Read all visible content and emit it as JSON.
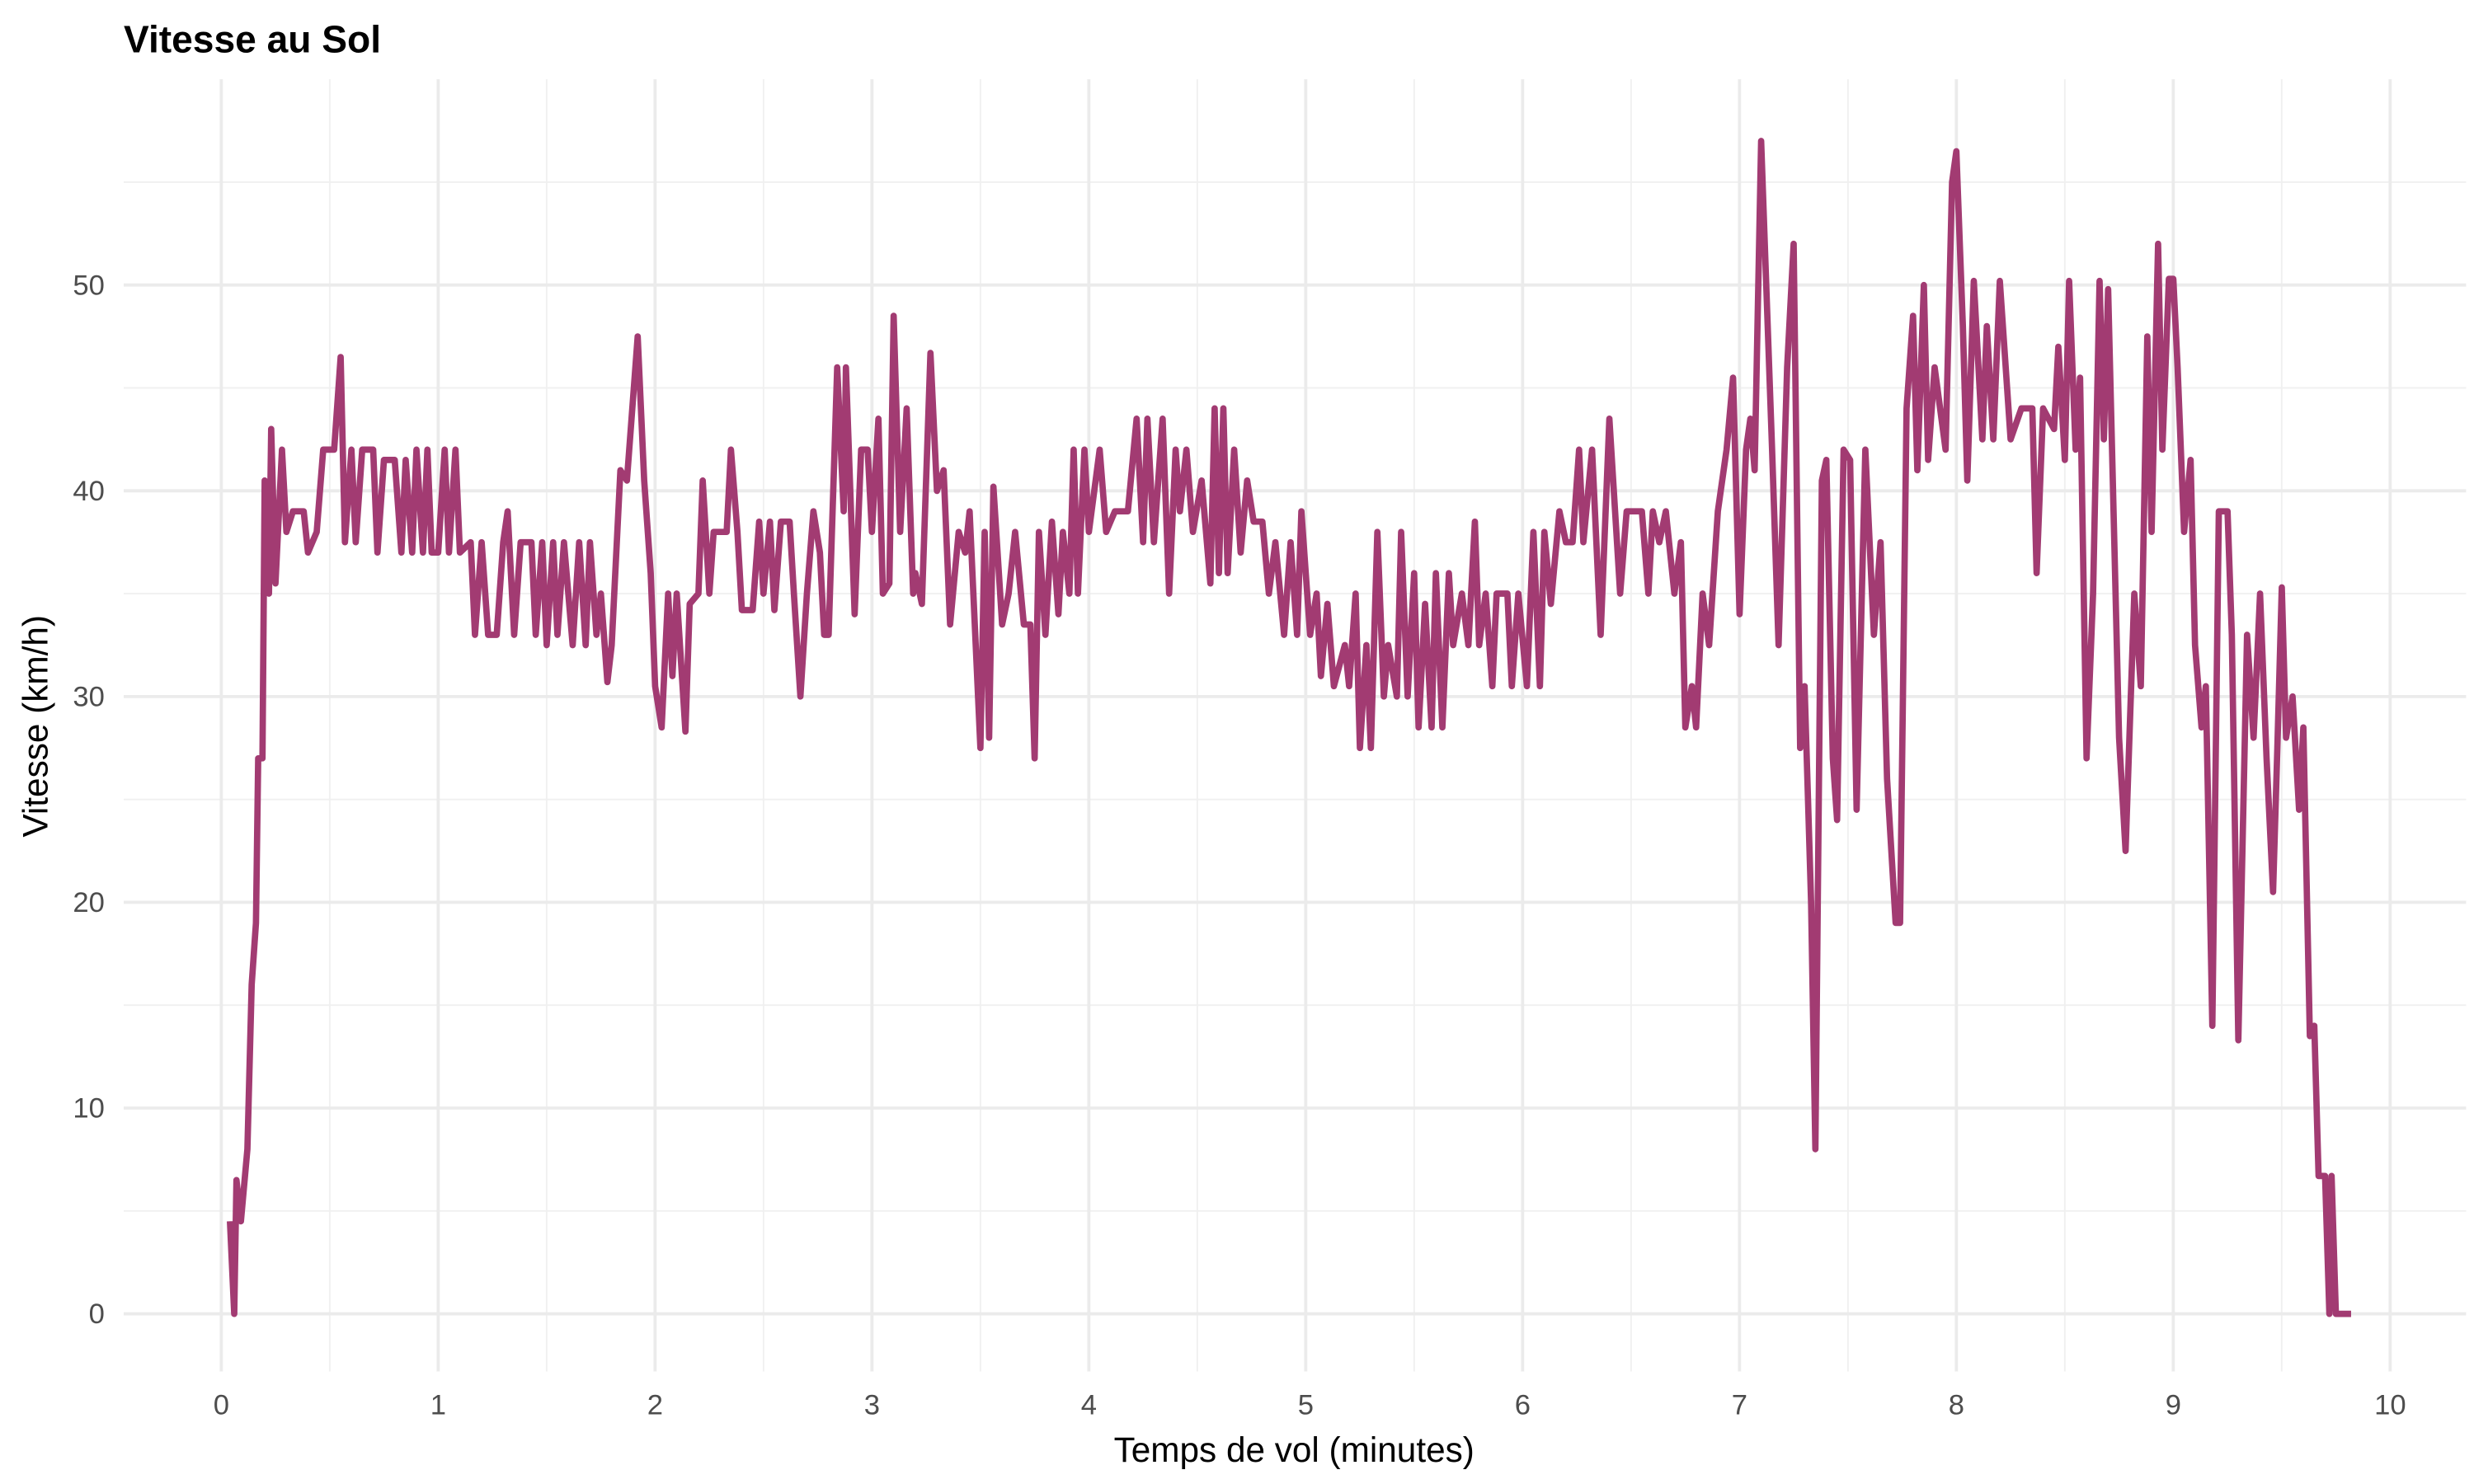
{
  "chart_data": {
    "type": "line",
    "title": "Vitesse au Sol",
    "xlabel": "Temps de vol (minutes)",
    "ylabel": "Vitesse (km/h)",
    "xlim": [
      -0.45,
      10.35
    ],
    "ylim": [
      -2.8,
      60
    ],
    "x_ticks": [
      0,
      1,
      2,
      3,
      4,
      5,
      6,
      7,
      8,
      9,
      10
    ],
    "y_ticks": [
      0,
      10,
      20,
      30,
      40,
      50
    ],
    "grid": true,
    "legend": "none",
    "line_color": "#A23B72",
    "points": [
      [
        0.04,
        4.5
      ],
      [
        0.06,
        0
      ],
      [
        0.07,
        6.5
      ],
      [
        0.09,
        4.5
      ],
      [
        0.12,
        8
      ],
      [
        0.14,
        16
      ],
      [
        0.16,
        19
      ],
      [
        0.17,
        27
      ],
      [
        0.19,
        27
      ],
      [
        0.2,
        40.5
      ],
      [
        0.22,
        35
      ],
      [
        0.23,
        43
      ],
      [
        0.25,
        35.5
      ],
      [
        0.28,
        42
      ],
      [
        0.3,
        38
      ],
      [
        0.33,
        39
      ],
      [
        0.38,
        39
      ],
      [
        0.4,
        37
      ],
      [
        0.44,
        38
      ],
      [
        0.47,
        42
      ],
      [
        0.52,
        42
      ],
      [
        0.55,
        46.5
      ],
      [
        0.57,
        37.5
      ],
      [
        0.6,
        42
      ],
      [
        0.62,
        37.5
      ],
      [
        0.65,
        42
      ],
      [
        0.7,
        42
      ],
      [
        0.72,
        37
      ],
      [
        0.75,
        41.5
      ],
      [
        0.8,
        41.5
      ],
      [
        0.83,
        37
      ],
      [
        0.85,
        41.5
      ],
      [
        0.88,
        37
      ],
      [
        0.9,
        42
      ],
      [
        0.93,
        37
      ],
      [
        0.95,
        42
      ],
      [
        0.97,
        37
      ],
      [
        1.0,
        37
      ],
      [
        1.03,
        42
      ],
      [
        1.05,
        37
      ],
      [
        1.08,
        42
      ],
      [
        1.1,
        37
      ],
      [
        1.15,
        37.5
      ],
      [
        1.17,
        33
      ],
      [
        1.2,
        37.5
      ],
      [
        1.23,
        33
      ],
      [
        1.27,
        33
      ],
      [
        1.3,
        37.5
      ],
      [
        1.32,
        39
      ],
      [
        1.35,
        33
      ],
      [
        1.38,
        37.5
      ],
      [
        1.43,
        37.5
      ],
      [
        1.45,
        33
      ],
      [
        1.48,
        37.5
      ],
      [
        1.5,
        32.5
      ],
      [
        1.53,
        37.5
      ],
      [
        1.55,
        33
      ],
      [
        1.58,
        37.5
      ],
      [
        1.62,
        32.5
      ],
      [
        1.65,
        37.5
      ],
      [
        1.68,
        32.5
      ],
      [
        1.7,
        37.5
      ],
      [
        1.73,
        33
      ],
      [
        1.75,
        35
      ],
      [
        1.78,
        30.7
      ],
      [
        1.8,
        32.5
      ],
      [
        1.84,
        41
      ],
      [
        1.87,
        40.5
      ],
      [
        1.92,
        47.5
      ],
      [
        1.95,
        40.5
      ],
      [
        1.98,
        36
      ],
      [
        2.0,
        30.5
      ],
      [
        2.03,
        28.5
      ],
      [
        2.06,
        35
      ],
      [
        2.08,
        31
      ],
      [
        2.1,
        35
      ],
      [
        2.14,
        28.3
      ],
      [
        2.16,
        34.5
      ],
      [
        2.2,
        35
      ],
      [
        2.22,
        40.5
      ],
      [
        2.25,
        35
      ],
      [
        2.27,
        38
      ],
      [
        2.33,
        38
      ],
      [
        2.35,
        42
      ],
      [
        2.38,
        38
      ],
      [
        2.4,
        34.2
      ],
      [
        2.45,
        34.2
      ],
      [
        2.48,
        38.5
      ],
      [
        2.5,
        35
      ],
      [
        2.53,
        38.5
      ],
      [
        2.55,
        34.2
      ],
      [
        2.58,
        38.5
      ],
      [
        2.62,
        38.5
      ],
      [
        2.64,
        35
      ],
      [
        2.67,
        30
      ],
      [
        2.7,
        35
      ],
      [
        2.73,
        39
      ],
      [
        2.76,
        37
      ],
      [
        2.78,
        33
      ],
      [
        2.8,
        33
      ],
      [
        2.84,
        46
      ],
      [
        2.87,
        39
      ],
      [
        2.88,
        46
      ],
      [
        2.92,
        34
      ],
      [
        2.95,
        42
      ],
      [
        2.98,
        42
      ],
      [
        3.0,
        38
      ],
      [
        3.03,
        43.5
      ],
      [
        3.05,
        35
      ],
      [
        3.08,
        35.5
      ],
      [
        3.1,
        48.5
      ],
      [
        3.13,
        38
      ],
      [
        3.16,
        44
      ],
      [
        3.19,
        35
      ],
      [
        3.2,
        36
      ],
      [
        3.23,
        34.5
      ],
      [
        3.27,
        46.7
      ],
      [
        3.3,
        40
      ],
      [
        3.33,
        41
      ],
      [
        3.36,
        33.5
      ],
      [
        3.4,
        38
      ],
      [
        3.43,
        37
      ],
      [
        3.45,
        39
      ],
      [
        3.5,
        27.5
      ],
      [
        3.52,
        38
      ],
      [
        3.54,
        28
      ],
      [
        3.56,
        40.2
      ],
      [
        3.6,
        33.5
      ],
      [
        3.63,
        35
      ],
      [
        3.66,
        38
      ],
      [
        3.7,
        33.5
      ],
      [
        3.73,
        33.5
      ],
      [
        3.75,
        27
      ],
      [
        3.77,
        38
      ],
      [
        3.8,
        33
      ],
      [
        3.83,
        38.5
      ],
      [
        3.86,
        34
      ],
      [
        3.88,
        38
      ],
      [
        3.91,
        35
      ],
      [
        3.93,
        42
      ],
      [
        3.95,
        35
      ],
      [
        3.98,
        42
      ],
      [
        4.0,
        38
      ],
      [
        4.05,
        42
      ],
      [
        4.08,
        38
      ],
      [
        4.12,
        39
      ],
      [
        4.18,
        39
      ],
      [
        4.22,
        43.5
      ],
      [
        4.25,
        37.5
      ],
      [
        4.27,
        43.5
      ],
      [
        4.3,
        37.5
      ],
      [
        4.34,
        43.5
      ],
      [
        4.37,
        35
      ],
      [
        4.4,
        42
      ],
      [
        4.42,
        39
      ],
      [
        4.45,
        42
      ],
      [
        4.48,
        38
      ],
      [
        4.52,
        40.5
      ],
      [
        4.56,
        35.5
      ],
      [
        4.58,
        44
      ],
      [
        4.6,
        36
      ],
      [
        4.62,
        44
      ],
      [
        4.64,
        36
      ],
      [
        4.67,
        42
      ],
      [
        4.7,
        37
      ],
      [
        4.73,
        40.5
      ],
      [
        4.76,
        38.5
      ],
      [
        4.8,
        38.5
      ],
      [
        4.83,
        35
      ],
      [
        4.86,
        37.5
      ],
      [
        4.9,
        33
      ],
      [
        4.93,
        37.5
      ],
      [
        4.96,
        33
      ],
      [
        4.98,
        39
      ],
      [
        5.02,
        33
      ],
      [
        5.05,
        35
      ],
      [
        5.07,
        31
      ],
      [
        5.1,
        34.5
      ],
      [
        5.13,
        30.5
      ],
      [
        5.18,
        32.5
      ],
      [
        5.2,
        30.5
      ],
      [
        5.23,
        35
      ],
      [
        5.25,
        27.5
      ],
      [
        5.28,
        32.5
      ],
      [
        5.3,
        27.5
      ],
      [
        5.33,
        38
      ],
      [
        5.36,
        30
      ],
      [
        5.38,
        32.5
      ],
      [
        5.42,
        30
      ],
      [
        5.44,
        38
      ],
      [
        5.47,
        30
      ],
      [
        5.5,
        36
      ],
      [
        5.52,
        28.5
      ],
      [
        5.55,
        34.5
      ],
      [
        5.58,
        28.5
      ],
      [
        5.6,
        36
      ],
      [
        5.63,
        28.5
      ],
      [
        5.66,
        36
      ],
      [
        5.68,
        32.5
      ],
      [
        5.72,
        35
      ],
      [
        5.75,
        32.5
      ],
      [
        5.78,
        38.5
      ],
      [
        5.8,
        32.5
      ],
      [
        5.83,
        35
      ],
      [
        5.86,
        30.5
      ],
      [
        5.88,
        35
      ],
      [
        5.93,
        35
      ],
      [
        5.95,
        30.5
      ],
      [
        5.98,
        35
      ],
      [
        6.02,
        30.5
      ],
      [
        6.05,
        38
      ],
      [
        6.08,
        30.5
      ],
      [
        6.1,
        38
      ],
      [
        6.13,
        34.5
      ],
      [
        6.17,
        39
      ],
      [
        6.2,
        37.5
      ],
      [
        6.23,
        37.5
      ],
      [
        6.26,
        42
      ],
      [
        6.28,
        37.5
      ],
      [
        6.32,
        42
      ],
      [
        6.36,
        33
      ],
      [
        6.4,
        43.5
      ],
      [
        6.45,
        35
      ],
      [
        6.48,
        39
      ],
      [
        6.55,
        39
      ],
      [
        6.58,
        35
      ],
      [
        6.6,
        39
      ],
      [
        6.63,
        37.5
      ],
      [
        6.66,
        39
      ],
      [
        6.7,
        35
      ],
      [
        6.73,
        37.5
      ],
      [
        6.75,
        28.5
      ],
      [
        6.78,
        30.5
      ],
      [
        6.8,
        28.5
      ],
      [
        6.83,
        35
      ],
      [
        6.86,
        32.5
      ],
      [
        6.9,
        39
      ],
      [
        6.94,
        42
      ],
      [
        6.97,
        45.5
      ],
      [
        7.0,
        34
      ],
      [
        7.03,
        42
      ],
      [
        7.05,
        43.5
      ],
      [
        7.07,
        41
      ],
      [
        7.1,
        57
      ],
      [
        7.15,
        42
      ],
      [
        7.18,
        32.5
      ],
      [
        7.22,
        46
      ],
      [
        7.25,
        52
      ],
      [
        7.28,
        27.5
      ],
      [
        7.3,
        30.5
      ],
      [
        7.33,
        20
      ],
      [
        7.35,
        8
      ],
      [
        7.38,
        40.5
      ],
      [
        7.4,
        41.5
      ],
      [
        7.43,
        27
      ],
      [
        7.45,
        24
      ],
      [
        7.48,
        42
      ],
      [
        7.51,
        41.5
      ],
      [
        7.54,
        24.5
      ],
      [
        7.58,
        42
      ],
      [
        7.62,
        33
      ],
      [
        7.65,
        37.5
      ],
      [
        7.68,
        26
      ],
      [
        7.72,
        19
      ],
      [
        7.74,
        19
      ],
      [
        7.77,
        44
      ],
      [
        7.8,
        48.5
      ],
      [
        7.82,
        41
      ],
      [
        7.85,
        50
      ],
      [
        7.87,
        41.5
      ],
      [
        7.9,
        46
      ],
      [
        7.95,
        42
      ],
      [
        7.98,
        55
      ],
      [
        8.0,
        56.5
      ],
      [
        8.03,
        48
      ],
      [
        8.05,
        40.5
      ],
      [
        8.08,
        50.2
      ],
      [
        8.12,
        42.5
      ],
      [
        8.14,
        48
      ],
      [
        8.17,
        42.5
      ],
      [
        8.2,
        50.2
      ],
      [
        8.25,
        42.5
      ],
      [
        8.3,
        44
      ],
      [
        8.35,
        44
      ],
      [
        8.37,
        36
      ],
      [
        8.4,
        44
      ],
      [
        8.45,
        43
      ],
      [
        8.47,
        47
      ],
      [
        8.5,
        41.5
      ],
      [
        8.52,
        50.2
      ],
      [
        8.55,
        42
      ],
      [
        8.57,
        45.5
      ],
      [
        8.6,
        27
      ],
      [
        8.63,
        35
      ],
      [
        8.66,
        50.2
      ],
      [
        8.68,
        42.5
      ],
      [
        8.7,
        49.8
      ],
      [
        8.75,
        28
      ],
      [
        8.78,
        22.5
      ],
      [
        8.82,
        35
      ],
      [
        8.85,
        30.5
      ],
      [
        8.88,
        47.5
      ],
      [
        8.9,
        38
      ],
      [
        8.93,
        52
      ],
      [
        8.95,
        42
      ],
      [
        8.98,
        50.3
      ],
      [
        9.0,
        50.3
      ],
      [
        9.02,
        46
      ],
      [
        9.05,
        38
      ],
      [
        9.08,
        41.5
      ],
      [
        9.1,
        32.5
      ],
      [
        9.13,
        28.5
      ],
      [
        9.15,
        30.5
      ],
      [
        9.18,
        14
      ],
      [
        9.21,
        39
      ],
      [
        9.25,
        39
      ],
      [
        9.27,
        33
      ],
      [
        9.3,
        13.3
      ],
      [
        9.34,
        33
      ],
      [
        9.37,
        28
      ],
      [
        9.4,
        35
      ],
      [
        9.43,
        27
      ],
      [
        9.46,
        20.5
      ],
      [
        9.48,
        27.5
      ],
      [
        9.5,
        35.3
      ],
      [
        9.52,
        28
      ],
      [
        9.55,
        30
      ],
      [
        9.58,
        24.5
      ],
      [
        9.6,
        28.5
      ],
      [
        9.63,
        13.5
      ],
      [
        9.65,
        14
      ],
      [
        9.67,
        6.7
      ],
      [
        9.7,
        6.7
      ],
      [
        9.72,
        0
      ],
      [
        9.73,
        6.7
      ],
      [
        9.75,
        0
      ],
      [
        9.82,
        0
      ]
    ]
  }
}
